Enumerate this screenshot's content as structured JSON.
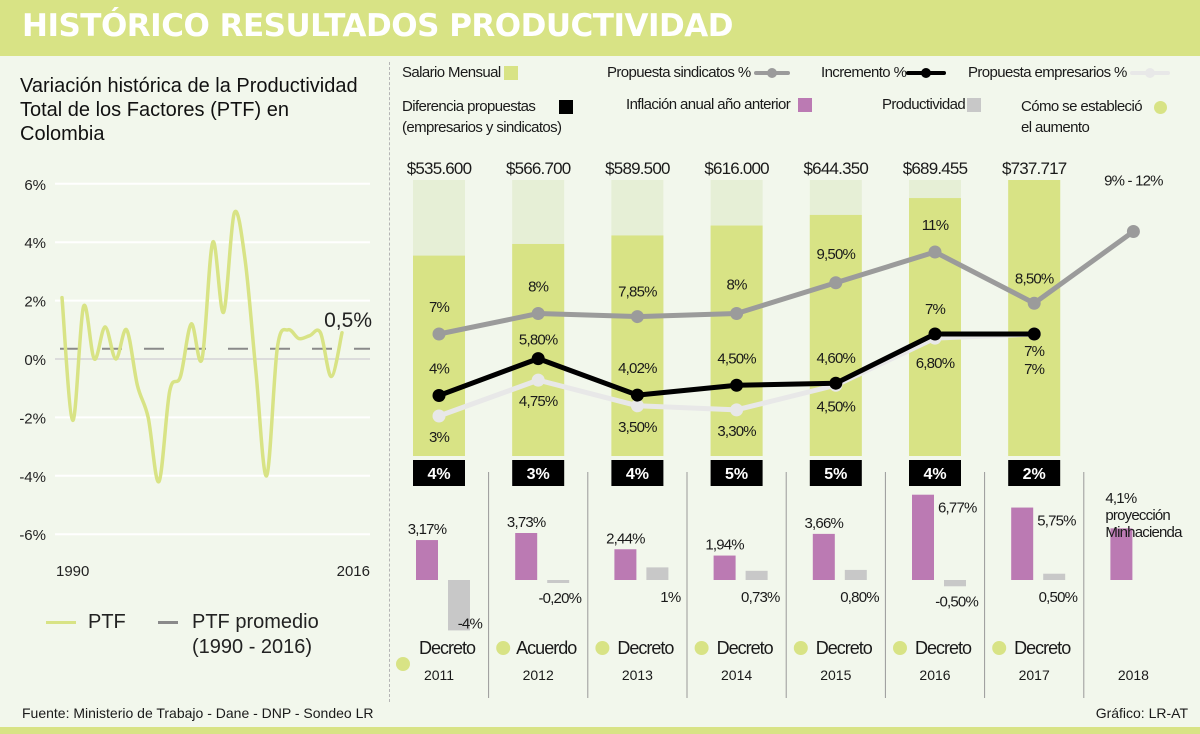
{
  "header": {
    "title": "HISTÓRICO RESULTADOS PRODUCTIVIDAD"
  },
  "left_panel": {
    "title": "Variación histórica de la Productividad Total de los Factores (PTF) en Colombia",
    "legend": {
      "ptf": "PTF",
      "avg_line1": "PTF promedio",
      "avg_line2": "(1990 - 2016)"
    }
  },
  "right_panel": {
    "legend": {
      "salario": "Salario Mensual",
      "sindicatos": "Propuesta sindicatos %",
      "incremento": "Incremento %",
      "empresarios": "Propuesta empresarios %",
      "diferencia_l1": "Diferencia propuestas",
      "diferencia_l2": "(empresarios y sindicatos)",
      "inflacion": "Inflación anual año anterior",
      "productividad": "Productividad",
      "como_l1": "Cómo se estableció",
      "como_l2": "el aumento"
    },
    "projection_note_l1": "proyección",
    "projection_note_l2": "Minhacienda"
  },
  "colors": {
    "brand": "#d8e385",
    "salary": "#d8e385",
    "salary_light": "#e6efd6",
    "sindicatos": "#9b9b9b",
    "incremento": "#000000",
    "empresarios": "#e8e8e8",
    "inflacion": "#bb7ab3",
    "productividad": "#c8c8c8",
    "ptf_line": "#d8e385",
    "ptf_avg": "#8a8a8a"
  },
  "chart_data": [
    {
      "type": "line",
      "title": "Variación histórica de la Productividad Total de los Factores (PTF) en Colombia",
      "xlabel": "",
      "ylabel": "",
      "x_tick_labels": [
        "1990",
        "2016"
      ],
      "y_ticks": [
        6,
        4,
        2,
        0,
        -2,
        -4,
        -6
      ],
      "y_tick_labels": [
        "6%",
        "4%",
        "2%",
        "0%",
        "-2%",
        "-4%",
        "-6%"
      ],
      "ylim": [
        -6,
        6
      ],
      "grid": true,
      "x": [
        1990,
        1991,
        1992,
        1993,
        1994,
        1995,
        1996,
        1997,
        1998,
        1999,
        2000,
        2001,
        2002,
        2003,
        2004,
        2005,
        2006,
        2007,
        2008,
        2009,
        2010,
        2011,
        2012,
        2013,
        2014,
        2015,
        2016
      ],
      "series": [
        {
          "name": "PTF",
          "values": [
            2.1,
            -2.1,
            1.8,
            0.0,
            1.1,
            0.0,
            1.0,
            -0.9,
            -2.0,
            -4.2,
            -1.1,
            -0.6,
            1.2,
            0.0,
            4.0,
            1.6,
            5.0,
            3.4,
            -0.4,
            -4.0,
            0.4,
            1.0,
            0.7,
            0.8,
            0.9,
            -0.6,
            0.9
          ]
        },
        {
          "name": "PTF promedio (1990 - 2016)",
          "values": [
            0.35
          ],
          "style": "dashed-horizontal"
        }
      ],
      "annotations": [
        {
          "x": 2016,
          "text": "0,5%"
        }
      ],
      "legend": [
        "PTF",
        "PTF promedio (1990 - 2016)"
      ],
      "legend_position": "bottom"
    },
    {
      "type": "bar",
      "title": "Salario mínimo y propuestas",
      "categories": [
        "2011",
        "2012",
        "2013",
        "2014",
        "2015",
        "2016",
        "2017",
        "2018"
      ],
      "salary": {
        "values": [
          535600,
          566700,
          589500,
          616000,
          644350,
          689455,
          737717,
          null
        ],
        "labels": [
          "$535.600",
          "$566.700",
          "$589.500",
          "$616.000",
          "$644.350",
          "$689.455",
          "$737.717",
          ""
        ]
      },
      "series": [
        {
          "name": "Propuesta sindicatos %",
          "values": [
            7,
            8,
            7.85,
            8,
            9.5,
            11,
            8.5,
            12
          ],
          "labels": [
            "7%",
            "8%",
            "7,85%",
            "8%",
            "9,50%",
            "11%",
            "8,50%",
            "9% - 12%"
          ]
        },
        {
          "name": "Incremento %",
          "values": [
            4,
            5.8,
            4.02,
            4.5,
            4.6,
            7,
            7,
            null
          ],
          "labels": [
            "4%",
            "5,80%",
            "4,02%",
            "4,50%",
            "4,60%",
            "7%",
            "7%",
            ""
          ]
        },
        {
          "name": "Propuesta empresarios %",
          "values": [
            3,
            4.75,
            3.5,
            3.3,
            4.5,
            6.8,
            7,
            null
          ],
          "labels": [
            "3%",
            "4,75%",
            "3,50%",
            "3,30%",
            "4,50%",
            "6,80%",
            "7%",
            ""
          ]
        }
      ],
      "diferencia_propuestas": [
        "4%",
        "3%",
        "4%",
        "5%",
        "5%",
        "4%",
        "2%",
        ""
      ],
      "ylim": [
        0,
        13
      ]
    },
    {
      "type": "bar",
      "title": "Inflación y productividad",
      "categories": [
        "2011",
        "2012",
        "2013",
        "2014",
        "2015",
        "2016",
        "2017",
        "2018"
      ],
      "series": [
        {
          "name": "Inflación anual año anterior",
          "values": [
            3.17,
            3.73,
            2.44,
            1.94,
            3.66,
            6.77,
            5.75,
            4.1
          ],
          "labels": [
            "3,17%",
            "3,73%",
            "2,44%",
            "1,94%",
            "3,66%",
            "6,77%",
            "5,75%",
            "4,1%"
          ]
        },
        {
          "name": "Productividad",
          "values": [
            -4,
            -0.2,
            1,
            0.73,
            0.8,
            -0.5,
            0.5,
            null
          ],
          "labels": [
            "-4%",
            "-0,20%",
            "1%",
            "0,73%",
            "0,80%",
            "-0,50%",
            "0,50%",
            ""
          ]
        }
      ],
      "mechanism": [
        "Decreto",
        "Acuerdo",
        "Decreto",
        "Decreto",
        "Decreto",
        "Decreto",
        "Decreto",
        ""
      ]
    }
  ],
  "footer": {
    "source": "Fuente: Ministerio de Trabajo - Dane - DNP - Sondeo LR",
    "credit": "Gráfico: LR-AT"
  }
}
